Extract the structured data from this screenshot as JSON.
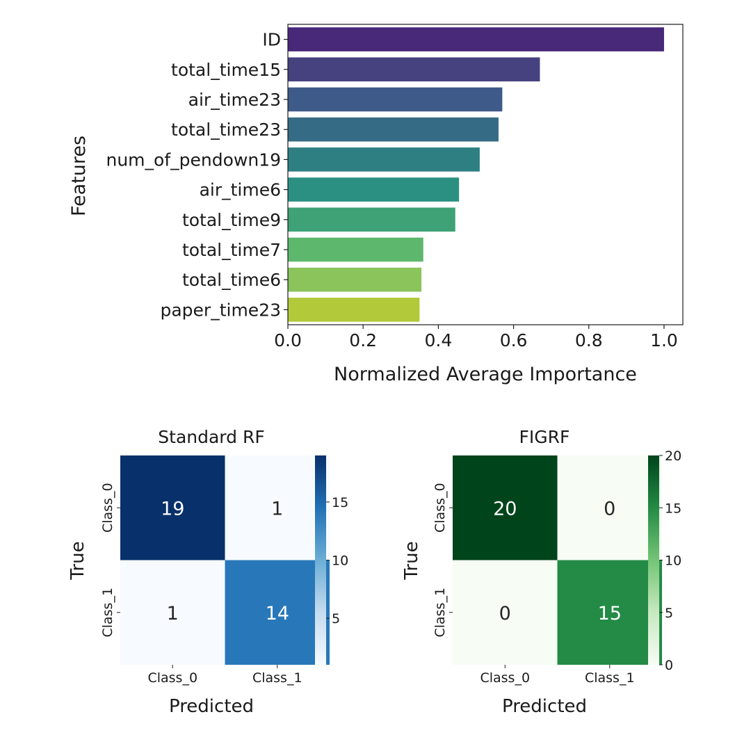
{
  "chart_data": [
    {
      "type": "bar",
      "orientation": "horizontal",
      "title": "",
      "xlabel": "Normalized Average Importance",
      "ylabel": "Features",
      "xlim": [
        0,
        1.05
      ],
      "xticks": [
        "0.0",
        "0.2",
        "0.4",
        "0.6",
        "0.8",
        "1.0"
      ],
      "categories": [
        "ID",
        "total_time15",
        "air_time23",
        "total_time23",
        "num_of_pendown19",
        "air_time6",
        "total_time9",
        "total_time7",
        "total_time6",
        "paper_time23"
      ],
      "values": [
        1.0,
        0.67,
        0.57,
        0.56,
        0.51,
        0.455,
        0.445,
        0.36,
        0.355,
        0.35
      ],
      "colors": [
        "#482878",
        "#46417f",
        "#3e5a89",
        "#366b86",
        "#2e7f82",
        "#2b9081",
        "#3ea276",
        "#5db86d",
        "#8ac45a",
        "#b2c93a"
      ]
    },
    {
      "type": "heatmap",
      "title": "Standard RF",
      "xlabel": "Predicted",
      "ylabel": "True",
      "x_categories": [
        "Class_0",
        "Class_1"
      ],
      "y_categories": [
        "Class_0",
        "Class_1"
      ],
      "matrix": [
        [
          19,
          1
        ],
        [
          1,
          14
        ]
      ],
      "colormap": "Blues",
      "colorbar_range": [
        1,
        19
      ],
      "colorbar_ticks": [
        "5",
        "10",
        "15"
      ]
    },
    {
      "type": "heatmap",
      "title": "FIGRF",
      "xlabel": "Predicted",
      "ylabel": "True",
      "x_categories": [
        "Class_0",
        "Class_1"
      ],
      "y_categories": [
        "Class_0",
        "Class_1"
      ],
      "matrix": [
        [
          20,
          0
        ],
        [
          0,
          15
        ]
      ],
      "colormap": "Greens",
      "colorbar_range": [
        0,
        20
      ],
      "colorbar_ticks": [
        "0",
        "5",
        "10",
        "15",
        "20"
      ]
    }
  ]
}
